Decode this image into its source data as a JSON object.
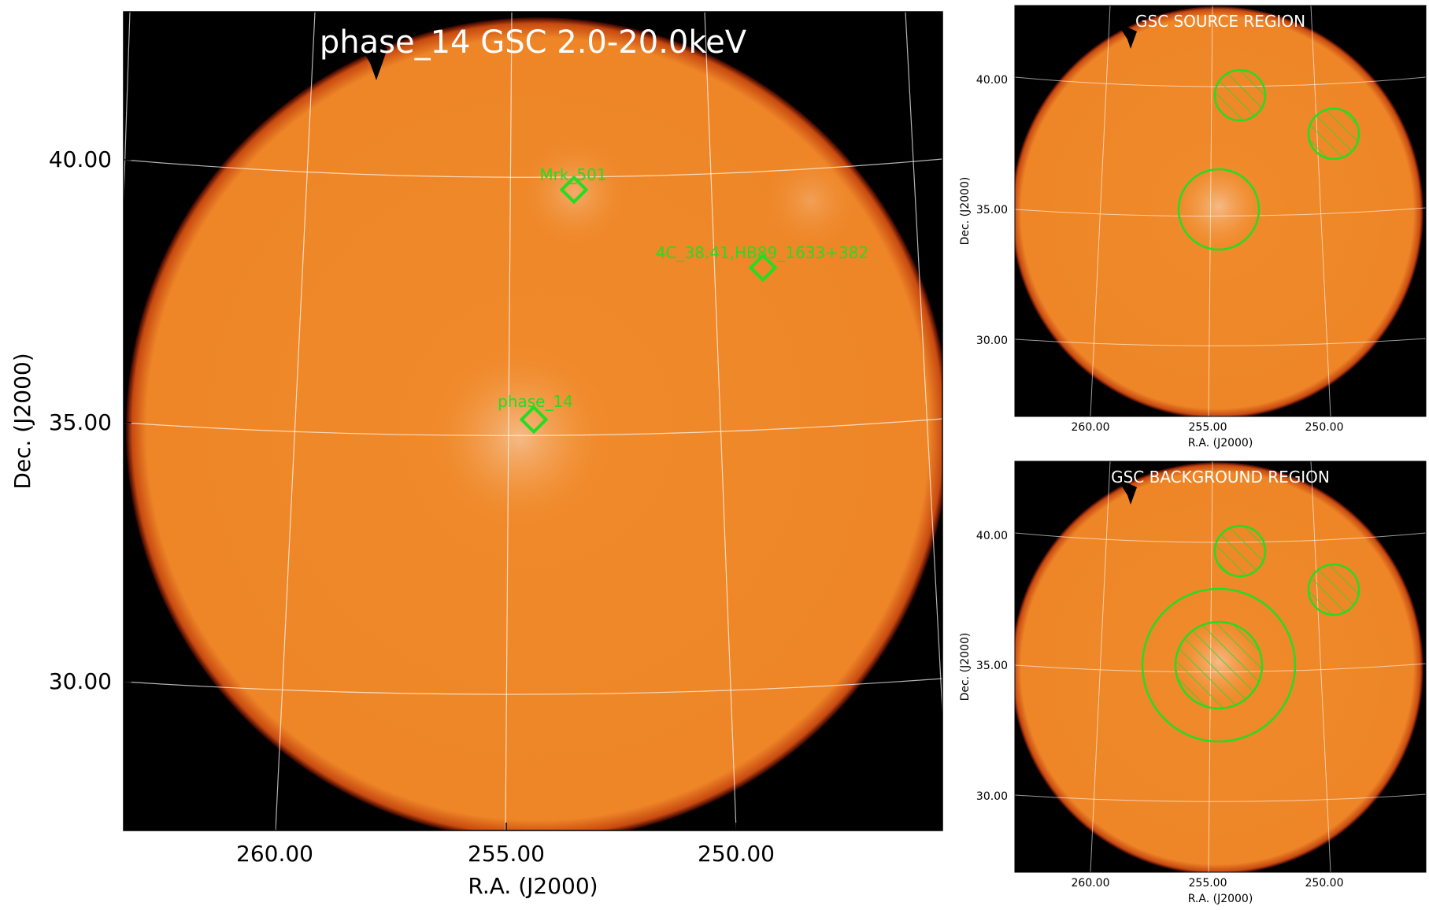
{
  "main_panel": {
    "title": "phase_14 GSC 2.0-20.0keV",
    "xlabel": "R.A. (J2000)",
    "ylabel": "Dec. (J2000)",
    "x_ticks": [
      "260.00",
      "255.00",
      "250.00"
    ],
    "y_ticks": [
      "40.00",
      "35.00",
      "30.00"
    ],
    "sources": [
      {
        "name": "Mrk_501",
        "ra": 253.47,
        "dec": 39.76
      },
      {
        "name": "4C_38.41,HB89_1633+382",
        "ra": 248.81,
        "dec": 38.13
      },
      {
        "name": "phase_14",
        "ra": 254.35,
        "dec": 35.34
      }
    ]
  },
  "source_panel": {
    "title": "GSC SOURCE REGION",
    "xlabel": "R.A. (J2000)",
    "ylabel": "Dec. (J2000)",
    "x_ticks": [
      "260.00",
      "255.00",
      "250.00"
    ],
    "y_ticks": [
      "40.00",
      "35.00",
      "30.00"
    ]
  },
  "background_panel": {
    "title": "GSC BACKGROUND REGION",
    "xlabel": "R.A. (J2000)",
    "ylabel": "Dec. (J2000)",
    "x_ticks": [
      "260.00",
      "255.00",
      "250.00"
    ],
    "y_ticks": [
      "40.00",
      "35.00",
      "30.00"
    ]
  },
  "colors": {
    "image_orange": "#f08a2a",
    "image_bright": "#f6b276",
    "sky_black": "#000000",
    "region_green": "#22dd22",
    "grid_white": "#ffffff"
  }
}
